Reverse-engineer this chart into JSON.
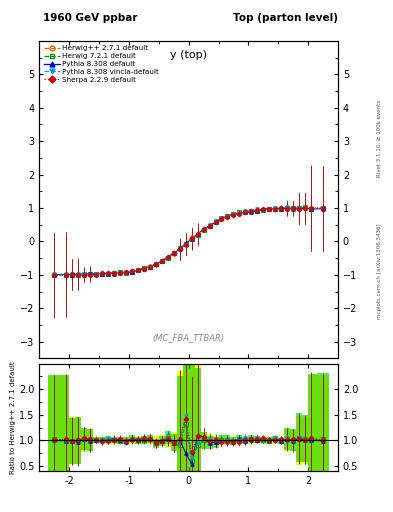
{
  "title_left": "1960 GeV ppbar",
  "title_right": "Top (parton level)",
  "xlabel": "y (top)",
  "ylabel_ratio": "Ratio to Herwig++ 2.7.1 default",
  "right_label_top": "Rivet 3.1.10, ≥ 100k events",
  "right_label_bottom": "mcplots.cern.ch [arXiv:1306.3436]",
  "watermark": "(MC_FBA_TTBAR)",
  "xlim": [
    -2.5,
    2.5
  ],
  "ylim_main": [
    -3.5,
    6.0
  ],
  "ylim_ratio": [
    0.4,
    2.5
  ],
  "yticks_main": [
    -3,
    -2,
    -1,
    0,
    1,
    2,
    3,
    4,
    5
  ],
  "yticks_ratio": [
    0.5,
    1.0,
    1.5,
    2.0
  ],
  "xticks": [
    -2,
    -1,
    0,
    1,
    2
  ],
  "colors": {
    "herwig": "#dd6600",
    "herwig72": "#009900",
    "pythia": "#0000cc",
    "vincia": "#0099cc",
    "sherpa": "#cc0000"
  },
  "legend_entries": [
    "Herwig++ 2.7.1 default",
    "Herwig 7.2.1 default",
    "Pythia 8.308 default",
    "Pythia 8.308 vincia-default",
    "Sherpa 2.2.9 default"
  ]
}
